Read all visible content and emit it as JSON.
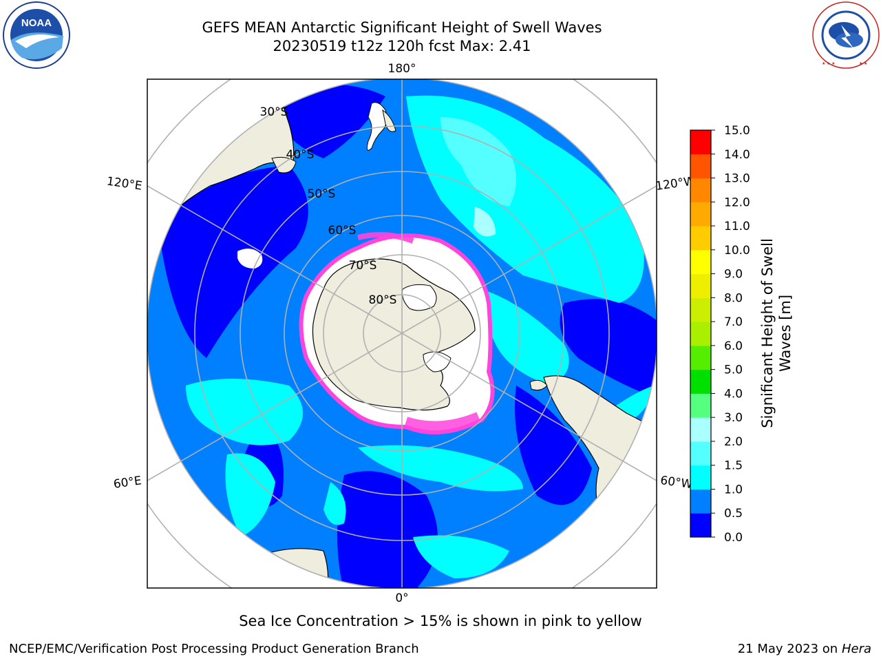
{
  "header": {
    "title_line1": "GEFS MEAN Antarctic Significant Height of Swell Waves",
    "title_line2": "20230519 t12z 120h fcst   Max: 2.41"
  },
  "logos": {
    "left": {
      "name": "noaa-logo",
      "text": "NOAA"
    },
    "right": {
      "name": "nws-logo",
      "text": "NATIONAL WEATHER SERVICE"
    }
  },
  "map": {
    "projection": "south-polar-stereographic",
    "longitude_labels": [
      "180°",
      "120°E",
      "120°W",
      "60°E",
      "60°W",
      "0°"
    ],
    "latitude_labels": [
      "30°S",
      "40°S",
      "50°S",
      "60°S",
      "70°S",
      "80°S"
    ],
    "colors": {
      "ocean_deep": "#0000ff",
      "ocean_mid": "#0080ff",
      "ocean_light": "#00ffff",
      "ocean_pale": "#55ffff",
      "land": "#eeedde",
      "sea_ice": "#ffffff",
      "ice_edge": "#ff44dd",
      "graticule": "#b0b0b0"
    }
  },
  "colorbar": {
    "label_line1": "Significant Height of Swell",
    "label_line2": "Waves [m]",
    "ticks": [
      "0.0",
      "0.5",
      "1.0",
      "1.5",
      "2.0",
      "3.0",
      "4.0",
      "5.0",
      "6.0",
      "7.0",
      "8.0",
      "9.0",
      "10.0",
      "11.0",
      "12.0",
      "13.0",
      "14.0",
      "15.0"
    ],
    "bins": [
      {
        "from": 0.0,
        "to": 0.5,
        "color": "#0000ff"
      },
      {
        "from": 0.5,
        "to": 1.0,
        "color": "#0080ff"
      },
      {
        "from": 1.0,
        "to": 1.5,
        "color": "#00ffff"
      },
      {
        "from": 1.5,
        "to": 2.0,
        "color": "#55ffff"
      },
      {
        "from": 2.0,
        "to": 3.0,
        "color": "#aaffff"
      },
      {
        "from": 3.0,
        "to": 4.0,
        "color": "#55ff80"
      },
      {
        "from": 4.0,
        "to": 5.0,
        "color": "#00e000"
      },
      {
        "from": 5.0,
        "to": 6.0,
        "color": "#55ee00"
      },
      {
        "from": 6.0,
        "to": 7.0,
        "color": "#aaee00"
      },
      {
        "from": 7.0,
        "to": 8.0,
        "color": "#ccee00"
      },
      {
        "from": 8.0,
        "to": 9.0,
        "color": "#eeee00"
      },
      {
        "from": 9.0,
        "to": 10.0,
        "color": "#ffff00"
      },
      {
        "from": 10.0,
        "to": 11.0,
        "color": "#ffcc00"
      },
      {
        "from": 11.0,
        "to": 12.0,
        "color": "#ffaa00"
      },
      {
        "from": 12.0,
        "to": 13.0,
        "color": "#ff8800"
      },
      {
        "from": 13.0,
        "to": 14.0,
        "color": "#ff5500"
      },
      {
        "from": 14.0,
        "to": 15.0,
        "color": "#ff0000"
      }
    ]
  },
  "caption": "Sea Ice Concentration > 15% is shown in pink to yellow",
  "footer": {
    "left": "NCEP/EMC/Verification Post Processing Product Generation Branch",
    "right_date": "21 May 2023 on",
    "right_host": "Hera"
  }
}
